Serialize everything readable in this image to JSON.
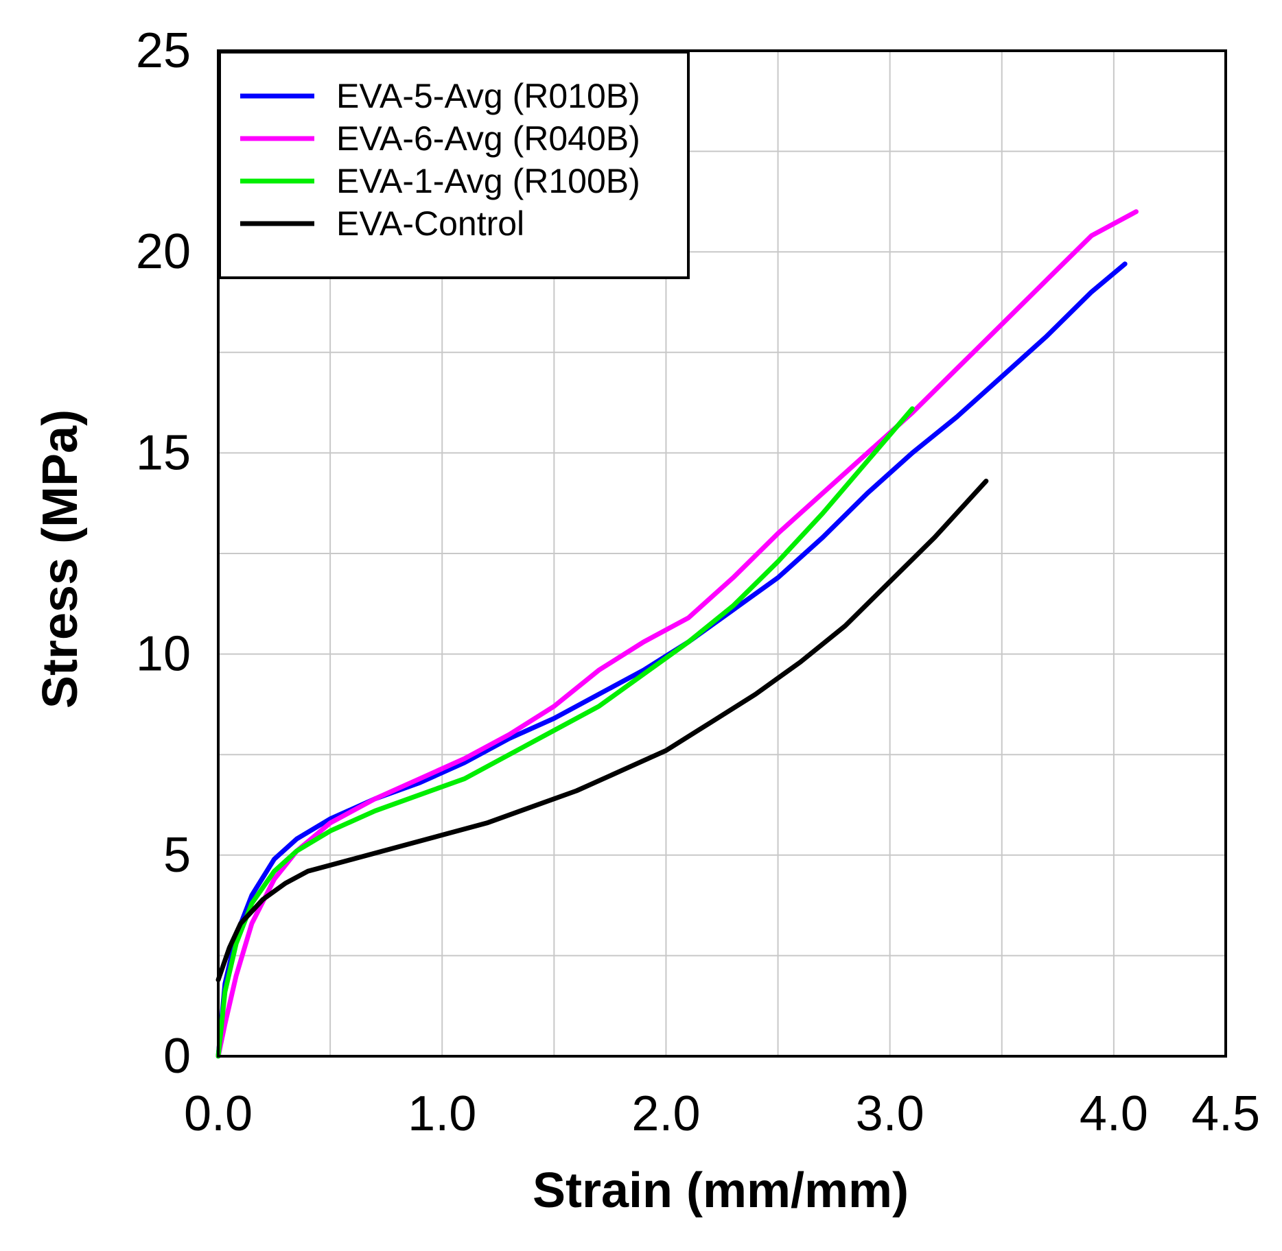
{
  "chart_data": {
    "type": "line",
    "title": "",
    "xlabel": "Strain (mm/mm)",
    "ylabel": "Stress (MPa)",
    "xlim": [
      0,
      4.5
    ],
    "ylim": [
      0,
      25
    ],
    "grid": true,
    "legend_position": "top-left",
    "x_ticks": [
      0,
      1,
      2,
      3,
      4,
      4.5
    ],
    "x_tick_labels": [
      "0.0",
      "1.0",
      "2.0",
      "3.0",
      "4.0",
      "4.5"
    ],
    "y_ticks": [
      0,
      5,
      10,
      15,
      20,
      25
    ],
    "y_tick_labels": [
      "0",
      "5",
      "10",
      "15",
      "20",
      "25"
    ],
    "x_minor_grid": [
      0.5,
      1.5,
      2.5,
      3.5
    ],
    "y_minor_grid": [
      2.5,
      7.5,
      12.5,
      17.5,
      22.5
    ],
    "series": [
      {
        "name": "EVA-5-Avg (R010B)",
        "color": "#0000ff",
        "x": [
          0,
          0.03,
          0.08,
          0.15,
          0.25,
          0.35,
          0.5,
          0.7,
          0.9,
          1.1,
          1.3,
          1.5,
          1.7,
          1.9,
          2.1,
          2.3,
          2.5,
          2.7,
          2.9,
          3.1,
          3.3,
          3.5,
          3.7,
          3.9,
          4.05
        ],
        "y": [
          0,
          1.8,
          3.0,
          4.0,
          4.9,
          5.4,
          5.9,
          6.4,
          6.8,
          7.3,
          7.9,
          8.4,
          9.0,
          9.6,
          10.3,
          11.1,
          11.9,
          12.9,
          14.0,
          15.0,
          15.9,
          16.9,
          17.9,
          19.0,
          19.7
        ]
      },
      {
        "name": "EVA-6-Avg (R040B)",
        "color": "#ff00ff",
        "x": [
          0,
          0.03,
          0.08,
          0.15,
          0.25,
          0.35,
          0.5,
          0.7,
          0.9,
          1.1,
          1.3,
          1.5,
          1.7,
          1.9,
          2.1,
          2.3,
          2.5,
          2.7,
          2.9,
          3.1,
          3.3,
          3.5,
          3.7,
          3.9,
          4.1
        ],
        "y": [
          0,
          0.8,
          2.0,
          3.3,
          4.4,
          5.1,
          5.8,
          6.4,
          6.9,
          7.4,
          8.0,
          8.7,
          9.6,
          10.3,
          10.9,
          11.9,
          13.0,
          14.0,
          15.0,
          16.0,
          17.1,
          18.2,
          19.3,
          20.4,
          21.0
        ]
      },
      {
        "name": "EVA-1-Avg (R100B)",
        "color": "#00ee00",
        "x": [
          0,
          0.03,
          0.08,
          0.15,
          0.25,
          0.35,
          0.5,
          0.7,
          0.9,
          1.1,
          1.3,
          1.5,
          1.7,
          1.9,
          2.1,
          2.3,
          2.5,
          2.7,
          2.9,
          3.1
        ],
        "y": [
          0,
          1.6,
          2.8,
          3.8,
          4.6,
          5.1,
          5.6,
          6.1,
          6.5,
          6.9,
          7.5,
          8.1,
          8.7,
          9.5,
          10.3,
          11.2,
          12.3,
          13.5,
          14.8,
          16.1
        ]
      },
      {
        "name": "EVA-Control",
        "color": "#000000",
        "x": [
          0,
          0.05,
          0.1,
          0.2,
          0.3,
          0.4,
          0.6,
          0.8,
          1.0,
          1.2,
          1.4,
          1.6,
          1.8,
          2.0,
          2.2,
          2.4,
          2.6,
          2.8,
          3.0,
          3.2,
          3.43
        ],
        "y": [
          1.9,
          2.7,
          3.3,
          3.9,
          4.3,
          4.6,
          4.9,
          5.2,
          5.5,
          5.8,
          6.2,
          6.6,
          7.1,
          7.6,
          8.3,
          9.0,
          9.8,
          10.7,
          11.8,
          12.9,
          14.3
        ]
      }
    ]
  }
}
